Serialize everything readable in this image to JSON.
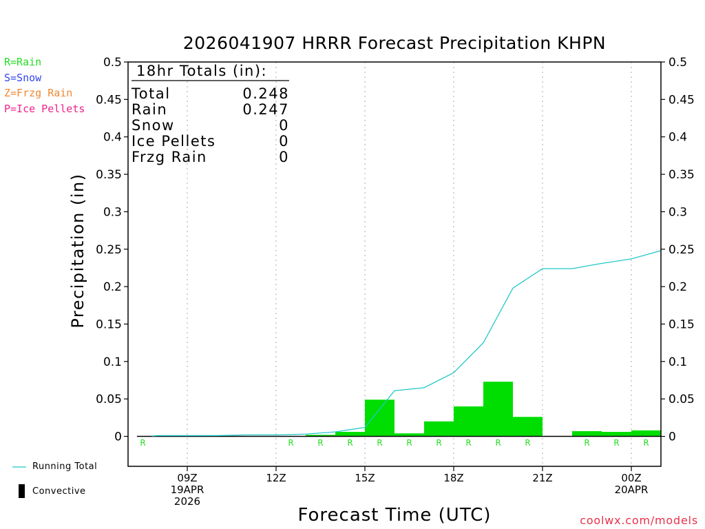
{
  "title": "2026041907 HRRR Forecast Precipitation KHPN",
  "legend_types": [
    {
      "label": "R=Rain",
      "color": "#22dd22"
    },
    {
      "label": "S=Snow",
      "color": "#3344ee"
    },
    {
      "label": "Z=Frzg Rain",
      "color": "#ee8833"
    },
    {
      "label": "P=Ice Pellets",
      "color": "#ee2288"
    }
  ],
  "totals_box": {
    "heading": "18hr Totals (in):",
    "rows": [
      {
        "label": "Total",
        "value": "0.248"
      },
      {
        "label": "Rain",
        "value": "0.247"
      },
      {
        "label": "Snow",
        "value": "0"
      },
      {
        "label": "Ice Pellets",
        "value": "0"
      },
      {
        "label": "Frzg Rain",
        "value": "0"
      }
    ]
  },
  "bottom_legend": {
    "running_total": "Running Total",
    "convective": "Convective",
    "running_total_color": "#22c8c8"
  },
  "credit": "coolwx.com/models",
  "colors": {
    "bar": "#00dd00",
    "line": "#20c8c8",
    "grid": "#aaaaaa"
  },
  "chart_data": {
    "type": "bar",
    "title": "2026041907 HRRR Forecast Precipitation KHPN",
    "xlabel": "Forecast Time (UTC)",
    "ylabel": "Precipitation (in)",
    "ylim": [
      -0.04,
      0.5
    ],
    "yticks": [
      0,
      0.05,
      0.1,
      0.15,
      0.2,
      0.25,
      0.3,
      0.35,
      0.4,
      0.45,
      0.5
    ],
    "ytick_labels": [
      "0",
      "0.05",
      "0.1",
      "0.15",
      "0.2",
      "0.25",
      "0.3",
      "0.35",
      "0.4",
      "0.45",
      "0.5"
    ],
    "xlim": [
      7.0,
      25.0
    ],
    "xticks": [
      {
        "hour": 9,
        "lines": [
          "09Z",
          "19APR",
          "2026"
        ]
      },
      {
        "hour": 12,
        "lines": [
          "12Z"
        ]
      },
      {
        "hour": 15,
        "lines": [
          "15Z"
        ]
      },
      {
        "hour": 18,
        "lines": [
          "18Z"
        ]
      },
      {
        "hour": 21,
        "lines": [
          "21Z"
        ]
      },
      {
        "hour": 24,
        "lines": [
          "00Z",
          "20APR"
        ]
      }
    ],
    "hours": [
      8,
      9,
      10,
      11,
      12,
      13,
      14,
      15,
      16,
      17,
      18,
      19,
      20,
      21,
      22,
      23,
      24,
      25
    ],
    "series": [
      {
        "name": "Hourly Precipitation",
        "values": [
          0,
          0,
          0,
          0,
          0,
          0,
          0.002,
          0.006,
          0.049,
          0.004,
          0.02,
          0.04,
          0.073,
          0.026,
          0,
          0.007,
          0.006,
          0.008
        ]
      },
      {
        "name": "Running Total",
        "values": [
          0.001,
          0.001,
          0.001,
          0.002,
          0.002,
          0.003,
          0.006,
          0.012,
          0.061,
          0.065,
          0.085,
          0.125,
          0.198,
          0.224,
          0.224,
          0.231,
          0.237,
          0.248
        ]
      },
      {
        "name": "Convective",
        "values": [
          0,
          0,
          0,
          0,
          0,
          0,
          0,
          0,
          0,
          0,
          0,
          0,
          0,
          0,
          0,
          0,
          0,
          0
        ]
      }
    ],
    "type_markers": [
      {
        "hour": 8,
        "label": "R"
      },
      {
        "hour": 13,
        "label": "R"
      },
      {
        "hour": 14,
        "label": "R"
      },
      {
        "hour": 15,
        "label": "R"
      },
      {
        "hour": 16,
        "label": "R"
      },
      {
        "hour": 17,
        "label": "R"
      },
      {
        "hour": 18,
        "label": "R"
      },
      {
        "hour": 19,
        "label": "R"
      },
      {
        "hour": 20,
        "label": "R"
      },
      {
        "hour": 21,
        "label": "R"
      },
      {
        "hour": 23,
        "label": "R"
      },
      {
        "hour": 24,
        "label": "R"
      },
      {
        "hour": 25,
        "label": "R"
      }
    ]
  }
}
